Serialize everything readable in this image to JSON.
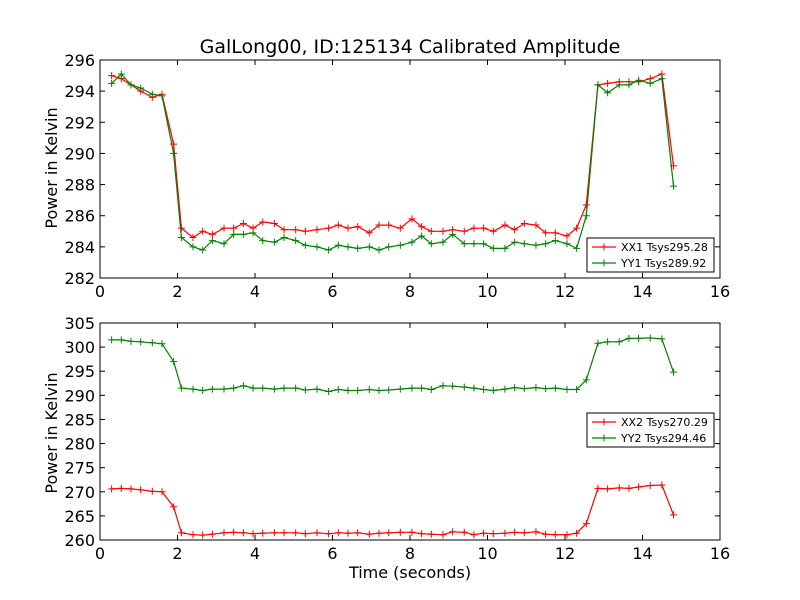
{
  "chart_data": [
    {
      "type": "line",
      "title": "GalLong00, ID:125134 Calibrated Amplitude",
      "xlabel": "",
      "ylabel": "Power in Kelvin",
      "xlim": [
        0,
        16
      ],
      "ylim": [
        282,
        296
      ],
      "xticks": [
        0,
        2,
        4,
        6,
        8,
        10,
        12,
        14,
        16
      ],
      "yticks": [
        282,
        284,
        286,
        288,
        290,
        292,
        294,
        296
      ],
      "grid": false,
      "legend_position": "lower-right",
      "x": [
        0.3,
        0.55,
        0.8,
        1.05,
        1.35,
        1.6,
        1.9,
        2.1,
        2.4,
        2.65,
        2.9,
        3.2,
        3.45,
        3.7,
        3.95,
        4.2,
        4.5,
        4.75,
        5.05,
        5.3,
        5.6,
        5.9,
        6.15,
        6.4,
        6.65,
        6.95,
        7.2,
        7.45,
        7.75,
        8.05,
        8.3,
        8.55,
        8.85,
        9.1,
        9.4,
        9.65,
        9.9,
        10.15,
        10.45,
        10.7,
        10.95,
        11.25,
        11.5,
        11.75,
        12.05,
        12.3,
        12.55,
        12.85,
        13.1,
        13.4,
        13.65,
        13.9,
        14.2,
        14.5,
        14.8
      ],
      "series": [
        {
          "name": "XX1 Tsys295.28",
          "color": "#ff0000",
          "values": [
            295.0,
            294.8,
            294.4,
            294.0,
            293.6,
            293.8,
            290.6,
            285.2,
            284.6,
            285.0,
            284.8,
            285.2,
            285.2,
            285.5,
            285.2,
            285.6,
            285.5,
            285.1,
            285.1,
            285.0,
            285.1,
            285.2,
            285.4,
            285.2,
            285.3,
            284.9,
            285.4,
            285.4,
            285.2,
            285.8,
            285.3,
            285.0,
            285.0,
            285.1,
            285.0,
            285.2,
            285.2,
            285.0,
            285.4,
            285.1,
            285.5,
            285.4,
            284.9,
            284.9,
            284.7,
            285.2,
            286.7,
            294.4,
            294.5,
            294.6,
            294.6,
            294.6,
            294.8,
            295.1,
            289.2
          ]
        },
        {
          "name": "YY1 Tsys289.92",
          "color": "#008000",
          "values": [
            294.5,
            295.1,
            294.4,
            294.2,
            293.8,
            293.7,
            290.0,
            284.6,
            284.0,
            283.8,
            284.4,
            284.2,
            284.8,
            284.8,
            284.9,
            284.4,
            284.3,
            284.6,
            284.4,
            284.1,
            284.0,
            283.8,
            284.1,
            284.0,
            283.9,
            284.0,
            283.8,
            284.0,
            284.1,
            284.3,
            284.7,
            284.2,
            284.3,
            284.8,
            284.2,
            284.2,
            284.2,
            283.9,
            283.9,
            284.3,
            284.2,
            284.1,
            284.2,
            284.4,
            284.2,
            283.9,
            286.0,
            294.4,
            293.9,
            294.4,
            294.4,
            294.7,
            294.5,
            294.8,
            287.9
          ]
        }
      ]
    },
    {
      "type": "line",
      "title": "",
      "xlabel": "Time (seconds)",
      "ylabel": "Power in Kelvin",
      "xlim": [
        0,
        16
      ],
      "ylim": [
        260,
        305
      ],
      "xticks": [
        0,
        2,
        4,
        6,
        8,
        10,
        12,
        14,
        16
      ],
      "yticks": [
        260,
        265,
        270,
        275,
        280,
        285,
        290,
        295,
        300,
        305
      ],
      "grid": false,
      "legend_position": "center-right",
      "x": [
        0.3,
        0.55,
        0.8,
        1.05,
        1.35,
        1.6,
        1.9,
        2.1,
        2.4,
        2.65,
        2.9,
        3.2,
        3.45,
        3.7,
        3.95,
        4.2,
        4.5,
        4.75,
        5.05,
        5.3,
        5.6,
        5.9,
        6.15,
        6.4,
        6.65,
        6.95,
        7.2,
        7.45,
        7.75,
        8.05,
        8.3,
        8.55,
        8.85,
        9.1,
        9.4,
        9.65,
        9.9,
        10.15,
        10.45,
        10.7,
        10.95,
        11.25,
        11.5,
        11.75,
        12.05,
        12.3,
        12.55,
        12.85,
        13.1,
        13.4,
        13.65,
        13.9,
        14.2,
        14.5,
        14.8
      ],
      "series": [
        {
          "name": "XX2 Tsys270.29",
          "color": "#ff0000",
          "values": [
            270.6,
            270.7,
            270.6,
            270.4,
            270.1,
            270.0,
            266.9,
            261.5,
            261.1,
            261.0,
            261.2,
            261.5,
            261.6,
            261.5,
            261.3,
            261.4,
            261.5,
            261.5,
            261.5,
            261.3,
            261.5,
            261.3,
            261.5,
            261.4,
            261.5,
            261.2,
            261.4,
            261.5,
            261.6,
            261.6,
            261.3,
            261.2,
            261.1,
            261.7,
            261.6,
            261.1,
            261.4,
            261.3,
            261.4,
            261.6,
            261.5,
            261.7,
            261.2,
            261.1,
            261.1,
            261.4,
            263.4,
            270.7,
            270.6,
            270.8,
            270.7,
            271.0,
            271.3,
            271.4,
            265.2
          ]
        },
        {
          "name": "YY2 Tsys294.46",
          "color": "#008000",
          "values": [
            301.5,
            301.5,
            301.2,
            301.1,
            300.9,
            300.7,
            297.0,
            291.5,
            291.3,
            291.0,
            291.3,
            291.3,
            291.5,
            292.0,
            291.5,
            291.5,
            291.3,
            291.5,
            291.5,
            291.1,
            291.3,
            290.8,
            291.2,
            291.0,
            291.0,
            291.2,
            291.0,
            291.1,
            291.3,
            291.5,
            291.5,
            291.2,
            292.0,
            291.9,
            291.7,
            291.5,
            291.2,
            291.0,
            291.3,
            291.6,
            291.4,
            291.6,
            291.4,
            291.5,
            291.2,
            291.2,
            293.2,
            300.8,
            301.1,
            301.1,
            301.8,
            301.8,
            301.9,
            301.7,
            294.8
          ]
        }
      ]
    }
  ]
}
